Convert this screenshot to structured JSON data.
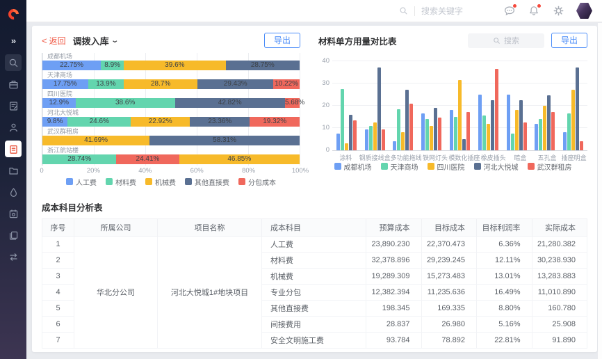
{
  "header": {
    "search_placeholder": "搜索关键字"
  },
  "sidebar": {
    "icons": [
      "collapse-expand",
      "search",
      "briefcase",
      "document-edit",
      "user-audit",
      "cost-clipboard-active",
      "folder",
      "water-drop",
      "calendar-settings",
      "copy-pages",
      "transfer-arrows"
    ]
  },
  "left_panel": {
    "back_label": "返回",
    "title": "调拨入库",
    "export_label": "导出"
  },
  "right_panel": {
    "title": "材料单方用量对比表",
    "search_placeholder": "搜索",
    "export_label": "导出"
  },
  "chart_data": [
    {
      "type": "stacked_bar_horizontal",
      "title": "调拨入库",
      "legend": [
        "人工费",
        "材料费",
        "机械费",
        "其他直接费",
        "分包成本"
      ],
      "legend_colors": [
        "#6e9ff4",
        "#63d5ae",
        "#f7ba2a",
        "#5a7092",
        "#f0685c"
      ],
      "x_ticks": [
        "0",
        "20%",
        "40%",
        "60%",
        "80%",
        "100%"
      ],
      "xlim": [
        0,
        100
      ],
      "rows": [
        {
          "category": "成都机场",
          "segments": [
            [
              "人工费",
              "22.75"
            ],
            [
              "材料费",
              "8.9"
            ],
            [
              "机械费",
              "39.6"
            ],
            [
              "其他直接费",
              "28.75"
            ]
          ]
        },
        {
          "category": "天津商场",
          "segments": [
            [
              "人工费",
              "17.75"
            ],
            [
              "材料费",
              "13.9"
            ],
            [
              "机械费",
              "28.7"
            ],
            [
              "其他直接费",
              "29.43"
            ],
            [
              "分包成本",
              "10.22"
            ]
          ]
        },
        {
          "category": "四川医院",
          "segments": [
            [
              "人工费",
              "12.9"
            ],
            [
              "材料费",
              "38.6"
            ],
            [
              "其他直接费",
              "42.82"
            ],
            [
              "分包成本",
              "5.68"
            ]
          ]
        },
        {
          "category": "河北大悦城",
          "segments": [
            [
              "人工费",
              "9.8"
            ],
            [
              "材料费",
              "24.6"
            ],
            [
              "机械费",
              "22.92"
            ],
            [
              "其他直接费",
              "23.36"
            ],
            [
              "分包成本",
              "19.32"
            ]
          ]
        },
        {
          "category": "武汉群租房",
          "segments": [
            [
              "机械费",
              "41.69"
            ],
            [
              "其他直接费",
              "58.31"
            ]
          ]
        },
        {
          "category": "浙江航站楼",
          "segments": [
            [
              "材料费",
              "28.74"
            ],
            [
              "分包成本",
              "24.41"
            ],
            [
              "机械费",
              "46.85"
            ]
          ]
        }
      ]
    },
    {
      "type": "bar",
      "title": "材料单方用量对比表",
      "categories": [
        "涂料",
        "钢质接线盒",
        "多功能拖线",
        "铁网灯头",
        "模数化插座",
        "橡皮插头",
        "暗盒",
        "五孔盒",
        "插座明盒"
      ],
      "series": [
        {
          "name": "成都机场",
          "color": "#6e9ff4",
          "values": [
            7.5,
            9.5,
            4,
            16.5,
            18,
            25,
            25,
            12,
            8
          ]
        },
        {
          "name": "天津商场",
          "color": "#63d5ae",
          "values": [
            27.5,
            11,
            18.5,
            14,
            15,
            15.5,
            7.5,
            14,
            16.5
          ]
        },
        {
          "name": "四川医院",
          "color": "#f7ba2a",
          "values": [
            3,
            12.5,
            8,
            11,
            31.5,
            12,
            18,
            20,
            27
          ]
        },
        {
          "name": "河北大悦城",
          "color": "#5a7092",
          "values": [
            16,
            37,
            27,
            19,
            5,
            22.5,
            22.5,
            24.5,
            37
          ]
        },
        {
          "name": "武汉群租房",
          "color": "#f0685c",
          "values": [
            13.5,
            9.5,
            21,
            14.5,
            17,
            36.5,
            12.5,
            17,
            4
          ]
        }
      ],
      "y_ticks": [
        0,
        10,
        20,
        30,
        40
      ],
      "ylim": [
        0,
        43
      ],
      "legend_position": "bottom"
    }
  ],
  "table": {
    "title": "成本科目分析表",
    "columns": [
      "序号",
      "所属公司",
      "项目名称",
      "成本科目",
      "预算成本",
      "目标成本",
      "目标利润率",
      "实际成本"
    ],
    "company": "华北分公司",
    "project": "河北大悦城1#地块项目",
    "rows": [
      [
        "1",
        "人工费",
        "23,890.230",
        "22,370.473",
        "6.36%",
        "21,280.382"
      ],
      [
        "2",
        "材料费",
        "32,378.896",
        "29,239.245",
        "12.11%",
        "30,238.930"
      ],
      [
        "3",
        "机械费",
        "19,289.309",
        "15,273.483",
        "13.01%",
        "13,283.883"
      ],
      [
        "4",
        "专业分包",
        "12,382.394",
        "11,235.636",
        "16.49%",
        "11,010.890"
      ],
      [
        "5",
        "其他直接费",
        "198.345",
        "169.335",
        "8.80%",
        "160.780"
      ],
      [
        "6",
        "间接费用",
        "28.837",
        "26.980",
        "5.16%",
        "25.908"
      ],
      [
        "7",
        "安全文明施工费",
        "93.784",
        "78.892",
        "22.81%",
        "91.890"
      ]
    ]
  }
}
